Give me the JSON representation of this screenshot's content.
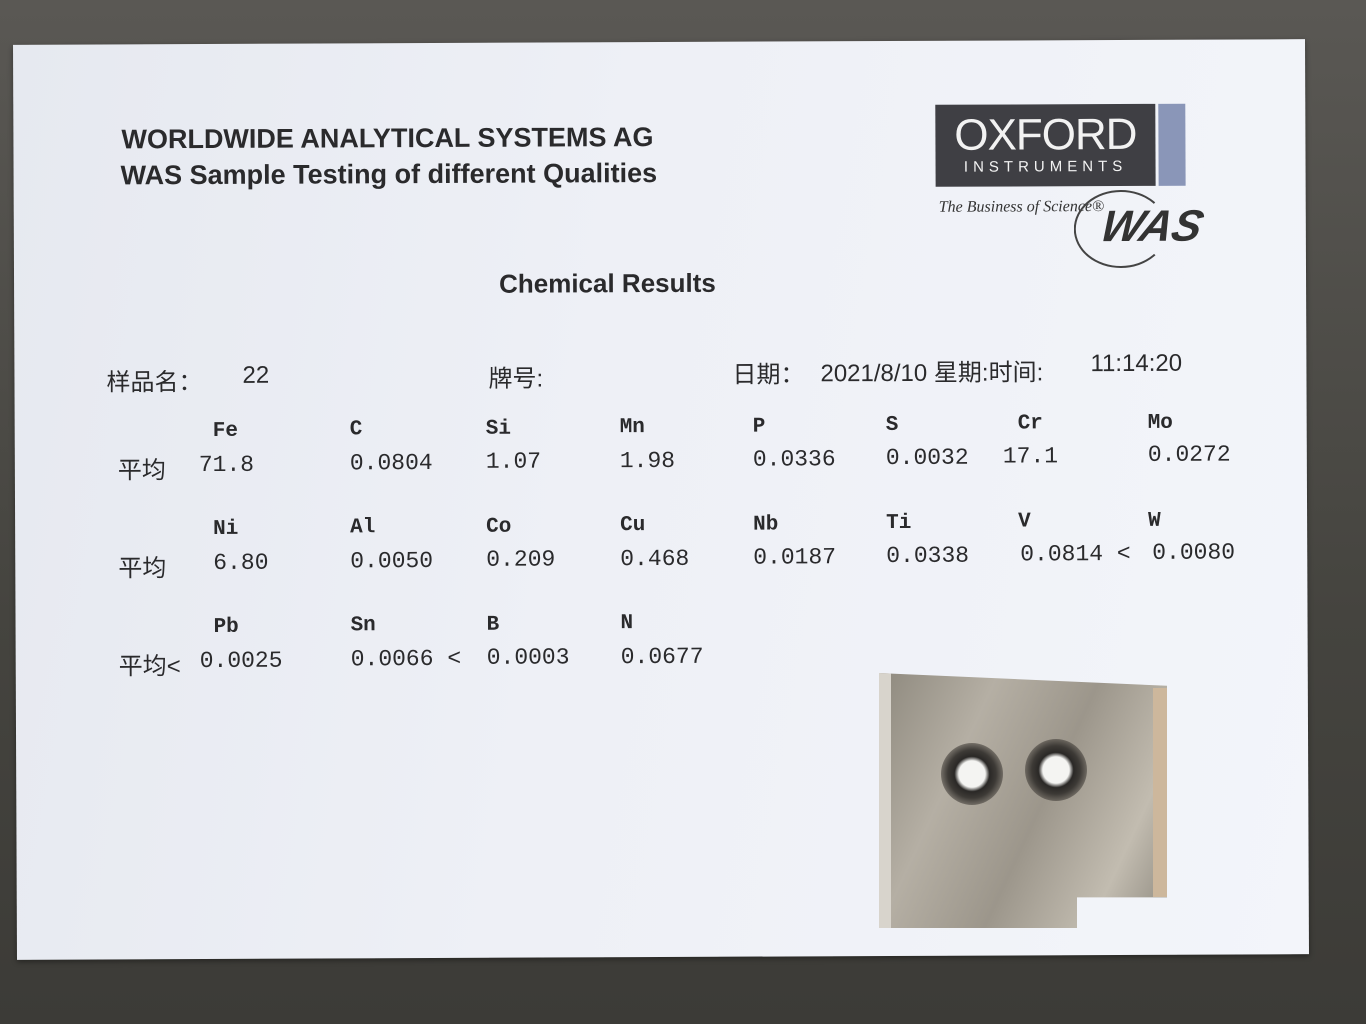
{
  "header": {
    "line1": "WORLDWIDE ANALYTICAL SYSTEMS AG",
    "line2": "WAS Sample Testing of different Qualities"
  },
  "logo": {
    "brand": "OXFORD",
    "sub": "INSTRUMENTS",
    "tagline": "The Business of Science®",
    "mark": "WAS"
  },
  "title": "Chemical Results",
  "meta": {
    "sample_label": "样品名：",
    "sample_value": "22",
    "grade_label": "牌号:",
    "date_label": "日期：",
    "date_value": "2021/8/10 星期:时间:",
    "time_value": "11:14:20"
  },
  "rows": [
    {
      "label": "平均",
      "items": [
        {
          "symbol": "Fe",
          "value": "71.8"
        },
        {
          "symbol": "C",
          "value": "0.0804"
        },
        {
          "symbol": "Si",
          "value": "1.07"
        },
        {
          "symbol": "Mn",
          "value": "1.98"
        },
        {
          "symbol": "P",
          "value": "0.0336"
        },
        {
          "symbol": "S",
          "value": "0.0032"
        },
        {
          "symbol": "Cr",
          "value": "17.1"
        },
        {
          "symbol": "Mo",
          "value": "0.0272"
        }
      ]
    },
    {
      "label": "平均",
      "items": [
        {
          "symbol": "Ni",
          "value": "6.80"
        },
        {
          "symbol": "Al",
          "value": "0.0050"
        },
        {
          "symbol": "Co",
          "value": "0.209"
        },
        {
          "symbol": "Cu",
          "value": "0.468"
        },
        {
          "symbol": "Nb",
          "value": "0.0187"
        },
        {
          "symbol": "Ti",
          "value": "0.0338"
        },
        {
          "symbol": "V",
          "value": "0.0814 <"
        },
        {
          "symbol": "W",
          "value": "0.0080"
        }
      ]
    },
    {
      "label": "平均<",
      "items": [
        {
          "symbol": "Pb",
          "value": "0.0025"
        },
        {
          "symbol": "Sn",
          "value": "0.0066 <"
        },
        {
          "symbol": "B",
          "value": "0.0003"
        },
        {
          "symbol": "N",
          "value": "0.0677"
        }
      ]
    }
  ],
  "colors": {
    "paper": "#eef0f6",
    "ink": "#2a2a2c",
    "logo_dark": "#3f3f44",
    "logo_blue": "#8a96b8"
  }
}
